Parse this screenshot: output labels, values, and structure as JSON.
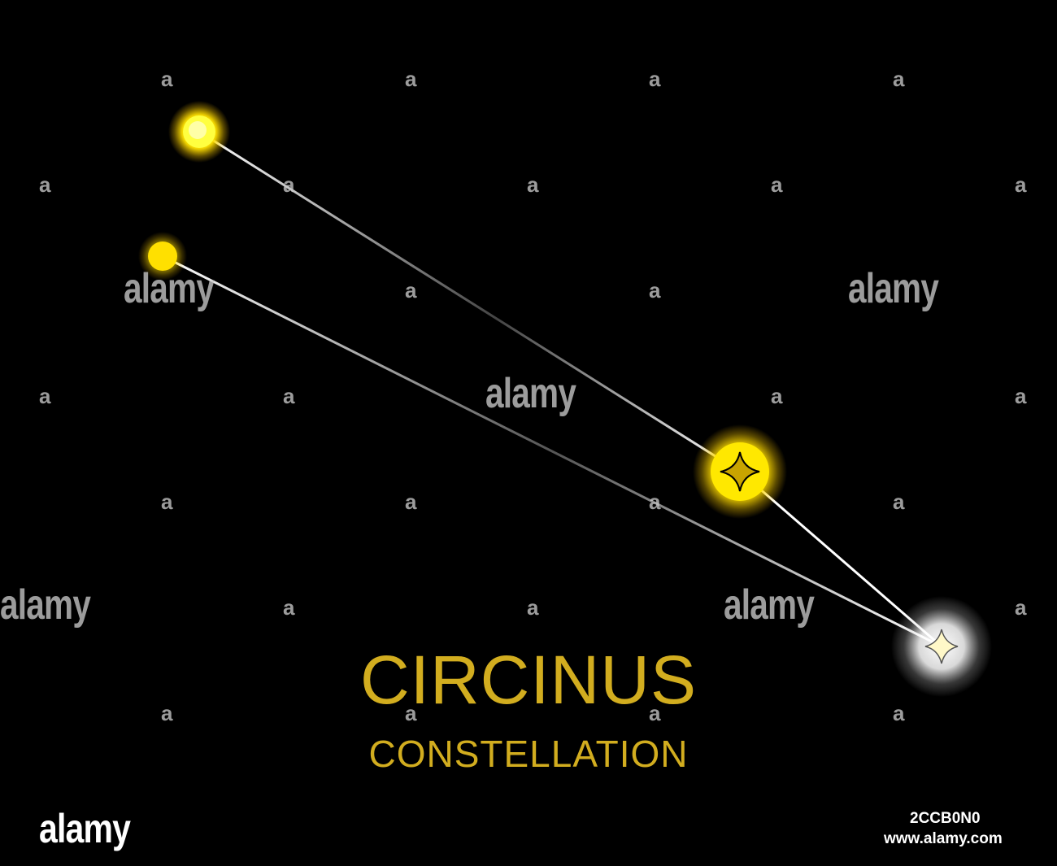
{
  "title": "CIRCINUS",
  "subtitle": "CONSTELLATION",
  "title_color": "#d2ad1f",
  "background_color": "#000000",
  "watermark": {
    "small_text": "a",
    "big_text": "alamy"
  },
  "footer": {
    "logo_text": "alamy",
    "image_id": "2CCB0N0",
    "site_url": "www.alamy.com"
  },
  "stars": [
    {
      "name": "star-top-left",
      "color": "#ffe800",
      "shape": "circle"
    },
    {
      "name": "star-mid-left",
      "color": "#ffe000",
      "shape": "circle"
    },
    {
      "name": "star-middle-right",
      "color": "#ffe000",
      "shape": "diamond"
    },
    {
      "name": "star-bottom-right",
      "color": "#ffffff",
      "shape": "diamond"
    }
  ],
  "connections": [
    {
      "from": "star-top-left",
      "to": "star-middle-right"
    },
    {
      "from": "star-middle-right",
      "to": "star-bottom-right"
    },
    {
      "from": "star-mid-left",
      "to": "star-bottom-right"
    }
  ]
}
